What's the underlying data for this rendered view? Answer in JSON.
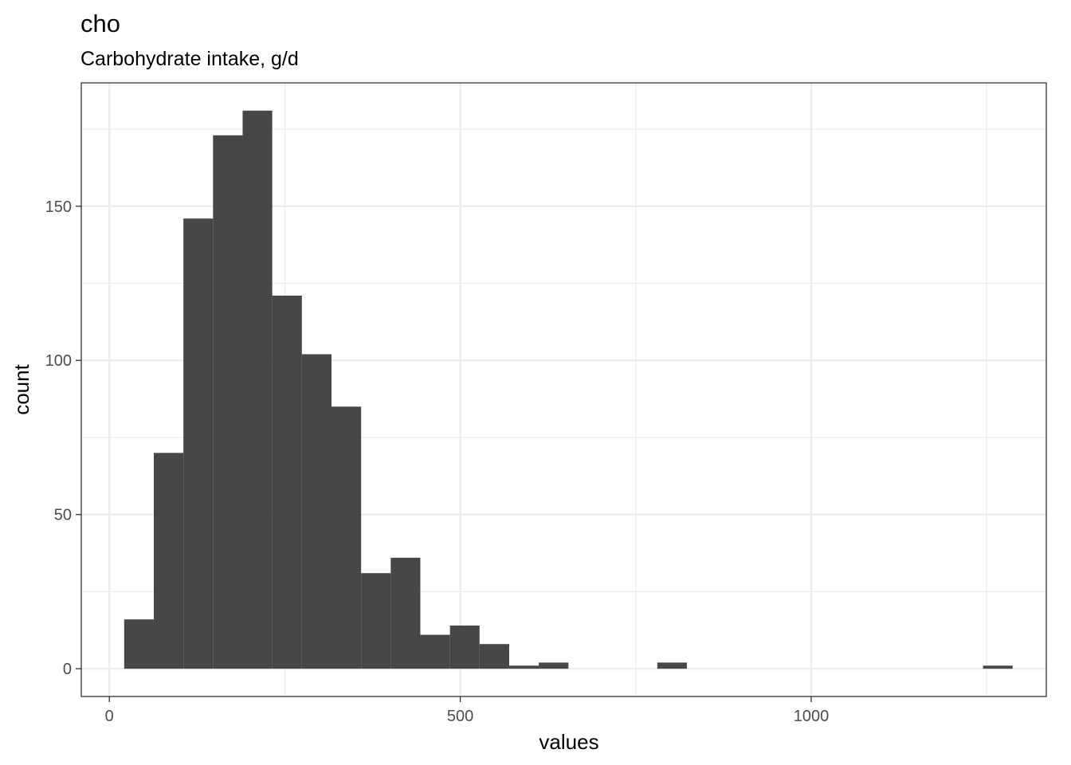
{
  "chart_data": {
    "type": "bar",
    "title": "cho",
    "subtitle": "Carbohydrate intake, g/d",
    "xlabel": "values",
    "ylabel": "count",
    "xlim": [
      -40,
      1335
    ],
    "ylim": [
      -9,
      190
    ],
    "x_ticks": [
      0,
      500,
      1000
    ],
    "y_ticks": [
      0,
      50,
      100,
      150
    ],
    "grid": true,
    "bin_width": 42.2,
    "bins": [
      {
        "start": 21.1,
        "count": 16
      },
      {
        "start": 63.3,
        "count": 70
      },
      {
        "start": 105.5,
        "count": 146
      },
      {
        "start": 147.7,
        "count": 173
      },
      {
        "start": 189.9,
        "count": 181
      },
      {
        "start": 232.1,
        "count": 121
      },
      {
        "start": 274.3,
        "count": 102
      },
      {
        "start": 316.5,
        "count": 85
      },
      {
        "start": 358.7,
        "count": 31
      },
      {
        "start": 400.9,
        "count": 36
      },
      {
        "start": 443.1,
        "count": 11
      },
      {
        "start": 485.3,
        "count": 14
      },
      {
        "start": 527.5,
        "count": 8
      },
      {
        "start": 569.7,
        "count": 1
      },
      {
        "start": 611.9,
        "count": 2
      },
      {
        "start": 654.1,
        "count": 0
      },
      {
        "start": 696.3,
        "count": 0
      },
      {
        "start": 738.5,
        "count": 0
      },
      {
        "start": 780.7,
        "count": 2
      },
      {
        "start": 822.9,
        "count": 0
      },
      {
        "start": 865.1,
        "count": 0
      },
      {
        "start": 907.3,
        "count": 0
      },
      {
        "start": 949.5,
        "count": 0
      },
      {
        "start": 991.7,
        "count": 0
      },
      {
        "start": 1033.9,
        "count": 0
      },
      {
        "start": 1076.1,
        "count": 0
      },
      {
        "start": 1118.3,
        "count": 0
      },
      {
        "start": 1160.5,
        "count": 0
      },
      {
        "start": 1202.7,
        "count": 0
      },
      {
        "start": 1244.9,
        "count": 1
      }
    ],
    "bar_color": "#474747",
    "grid_color": "#ebebeb"
  }
}
